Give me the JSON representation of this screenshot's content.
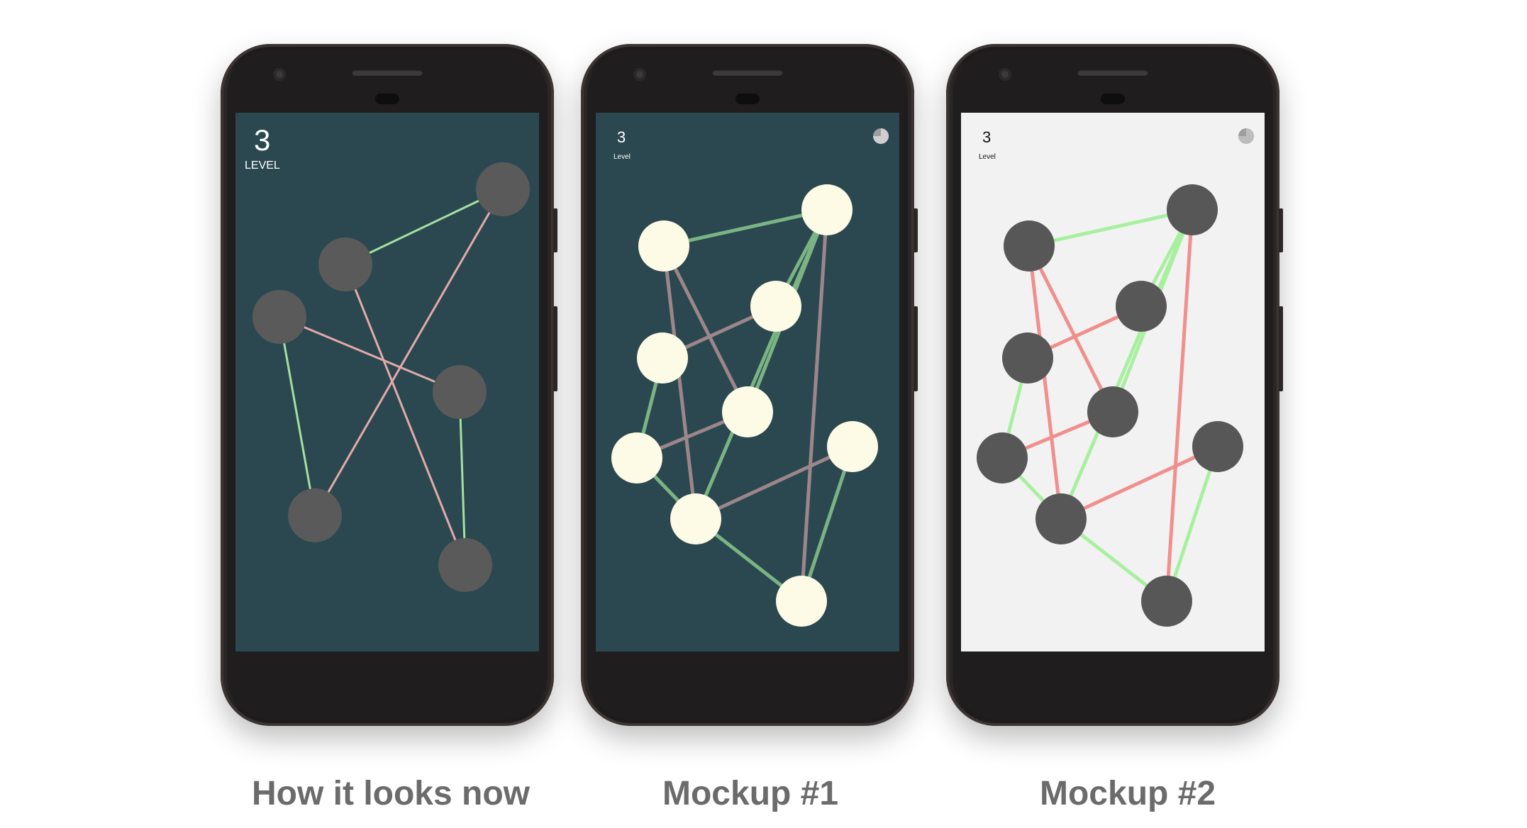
{
  "captions": {
    "current": "How it looks now",
    "mockup1": "Mockup #1",
    "mockup2": "Mockup #2"
  },
  "screens": [
    {
      "level_number": "3",
      "level_label": "LEVEL",
      "background": "#2b4850",
      "node_color": "#5a5a5a",
      "ok_edge_color": "#a5e0a0",
      "cross_edge_color": "#e3aaa8",
      "show_timer": false
    },
    {
      "level_number": "3",
      "level_label": "Level",
      "background": "#2b4850",
      "node_color": "#fdfbe6",
      "ok_edge_color": "#7bb483",
      "cross_edge_color": "#9c868a",
      "show_timer": true,
      "timer_progress": 0.75
    },
    {
      "level_number": "3",
      "level_label": "Level",
      "background": "#f2f2f2",
      "node_color": "#575757",
      "ok_edge_color": "#a8f0a0",
      "cross_edge_color": "#f08f8c",
      "show_timer": true,
      "timer_progress": 0.75
    }
  ]
}
